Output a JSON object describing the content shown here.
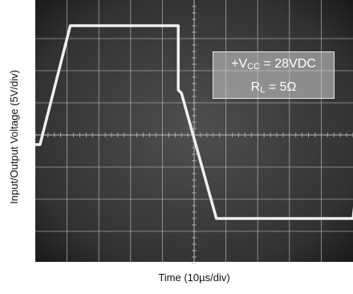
{
  "chart_data": {
    "type": "line",
    "title": "",
    "xlabel": "Time (10µs/div)",
    "ylabel": "Input/Output Voltage (5V/div)",
    "xlim": [
      0,
      10
    ],
    "ylim": [
      -4,
      4
    ],
    "grid": true,
    "annotation": {
      "line1": "+V",
      "line1_sub": "CC",
      "line1_rest": " = 28VDC",
      "line2": "R",
      "line2_sub": "L",
      "line2_rest": " = 5Ω"
    },
    "series": [
      {
        "x": [
          0,
          0.15,
          1.1,
          4.5,
          4.5,
          4.6,
          5.7,
          10.0,
          10.4
        ],
        "y": [
          -0.3,
          -0.3,
          3.4,
          3.4,
          1.4,
          1.3,
          -2.6,
          -2.6,
          0.7
        ]
      }
    ],
    "colors": {
      "background": "#3a3a3a",
      "grid": "#bdbdbd",
      "trace": "#efefef",
      "annotation_text": "#ffffff"
    }
  }
}
